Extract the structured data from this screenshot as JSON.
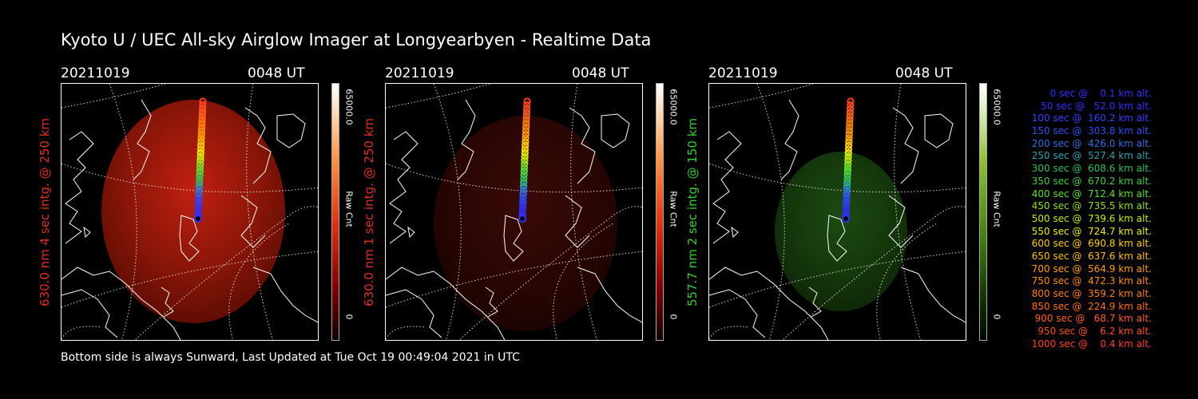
{
  "title": "Kyoto U / UEC All-sky Airglow Imager at Longyearbyen - Realtime Data",
  "footer": "Bottom side is always Sunward, Last Updated at Tue Oct 19 00:49:04 2021 in UTC",
  "colors": {
    "red_label": "#e03020",
    "green_label": "#30d030"
  },
  "panels": [
    {
      "date": "20211019",
      "time": "0048 UT",
      "side_label": "630.0 nm 4 sec intg. @ 250 km",
      "side_color": "#e03020",
      "cbar_max": "65000.0",
      "cbar_unit": "Raw Cnt",
      "cbar_min": "0",
      "glow": "bright-red"
    },
    {
      "date": "20211019",
      "time": "0048 UT",
      "side_label": "630.0 nm 1 sec intg. @ 250 km",
      "side_color": "#e03020",
      "cbar_max": "65000.0",
      "cbar_unit": "Raw Cnt",
      "cbar_min": "0",
      "glow": "dim-red"
    },
    {
      "date": "20211019",
      "time": "0048 UT",
      "side_label": "557.7 nm 2 sec intg. @ 150 km",
      "side_color": "#30d030",
      "cbar_max": "65000.0",
      "cbar_unit": "Raw Cnt",
      "cbar_min": "0",
      "glow": "green"
    }
  ],
  "legend": [
    {
      "text": "   0 sec @    0.1 km alt.",
      "color": "#3030ff"
    },
    {
      "text": "  50 sec @   52.0 km alt.",
      "color": "#3030ff"
    },
    {
      "text": " 100 sec @  160.2 km alt.",
      "color": "#3040ff"
    },
    {
      "text": " 150 sec @  303.8 km alt.",
      "color": "#3050f0"
    },
    {
      "text": " 200 sec @  426.0 km alt.",
      "color": "#3070e0"
    },
    {
      "text": " 250 sec @  527.4 km alt.",
      "color": "#30a0b0"
    },
    {
      "text": " 300 sec @  608.6 km alt.",
      "color": "#30c060"
    },
    {
      "text": " 350 sec @  670.2 km alt.",
      "color": "#40d040"
    },
    {
      "text": " 400 sec @  712.4 km alt.",
      "color": "#60e030"
    },
    {
      "text": " 450 sec @  735.5 km alt.",
      "color": "#90e020"
    },
    {
      "text": " 500 sec @  739.6 km alt.",
      "color": "#c0f000"
    },
    {
      "text": " 550 sec @  724.7 km alt.",
      "color": "#f0f000"
    },
    {
      "text": " 600 sec @  690.8 km alt.",
      "color": "#ffd000"
    },
    {
      "text": " 650 sec @  637.6 km alt.",
      "color": "#ffc000"
    },
    {
      "text": " 700 sec @  564.9 km alt.",
      "color": "#ffa000"
    },
    {
      "text": " 750 sec @  472.3 km alt.",
      "color": "#ff9000"
    },
    {
      "text": " 800 sec @  359.2 km alt.",
      "color": "#ff8000"
    },
    {
      "text": " 850 sec @  224.9 km alt.",
      "color": "#ff7010"
    },
    {
      "text": " 900 sec @   68.7 km alt.",
      "color": "#ff6020"
    },
    {
      "text": " 950 sec @    6.2 km alt.",
      "color": "#ff5020"
    },
    {
      "text": "1000 sec @    0.4 km alt.",
      "color": "#ff4020"
    }
  ]
}
